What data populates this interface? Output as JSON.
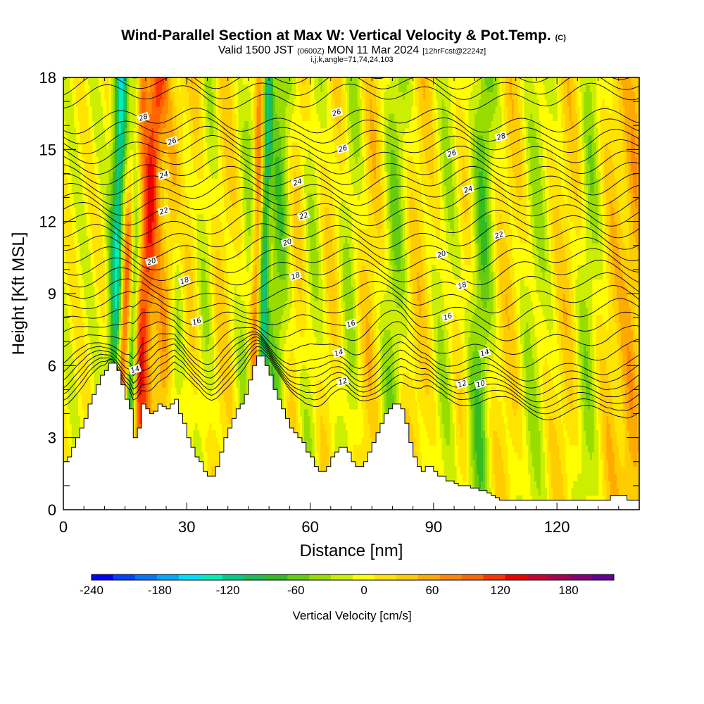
{
  "title": {
    "main": "Wind-Parallel Section at Max W: Vertical Velocity & Pot.Temp.",
    "mark": "(C)",
    "valid_prefix": "Valid 1500 JST",
    "valid_utc": "(0600Z)",
    "valid_date": "MON 11 Mar 2024",
    "forecast": "[12hrFcst@2224z]",
    "indices": "i,j,k,angle=71,74,24,103"
  },
  "chart_data": {
    "type": "heatmap",
    "xlabel": "Distance [nm]",
    "ylabel": "Height [Kft MSL]",
    "xlim": [
      0,
      140
    ],
    "ylim": [
      0,
      18
    ],
    "x_ticks": [
      0,
      30,
      60,
      90,
      120
    ],
    "y_ticks": [
      0,
      3,
      6,
      9,
      12,
      15,
      18
    ],
    "colorbar": {
      "title": "Vertical Velocity [cm/s]",
      "range": [
        -240,
        220
      ],
      "tick_values": [
        -240,
        -180,
        -120,
        -60,
        0,
        60,
        120,
        180
      ],
      "tick_labels": [
        "-240",
        "-180",
        "-120",
        "-60",
        "0",
        "60",
        "120",
        "180"
      ],
      "colors": [
        "#0000ff",
        "#0044ff",
        "#0077ff",
        "#00aaff",
        "#00ddff",
        "#00eebb",
        "#00cc88",
        "#22bb55",
        "#33bb22",
        "#66cc11",
        "#99dd00",
        "#ccee00",
        "#ffff00",
        "#ffe400",
        "#ffcc00",
        "#ffaa00",
        "#ff8800",
        "#ff6600",
        "#ff3300",
        "#ee0000",
        "#cc0033",
        "#aa0055",
        "#880077",
        "#660099"
      ]
    },
    "terrain": {
      "x": [
        0,
        1,
        2,
        3,
        4,
        5,
        6,
        7,
        8,
        9,
        10,
        11,
        12,
        13,
        14,
        15,
        16,
        17,
        18,
        19,
        20,
        21,
        22,
        23,
        24,
        25,
        26,
        27,
        28,
        29,
        30,
        31,
        32,
        33,
        34,
        35,
        36,
        37,
        38,
        39,
        40,
        41,
        42,
        43,
        44,
        45,
        46,
        47,
        48,
        49,
        50,
        51,
        52,
        53,
        54,
        55,
        56,
        57,
        58,
        59,
        60,
        61,
        62,
        63,
        64,
        65,
        66,
        67,
        68,
        69,
        70,
        71,
        72,
        73,
        74,
        75,
        76,
        77,
        78,
        79,
        80,
        81,
        82,
        83,
        84,
        85,
        86,
        87,
        88,
        89,
        90,
        91,
        92,
        93,
        94,
        95,
        96,
        97,
        98,
        99,
        100,
        101,
        102,
        103,
        104,
        105,
        106,
        107,
        108,
        109,
        110,
        111,
        112,
        113,
        114,
        115,
        116,
        117,
        118,
        119,
        120,
        121,
        122,
        123,
        124,
        125,
        126,
        127,
        128,
        129,
        130,
        131,
        132,
        133,
        134,
        135,
        136,
        137,
        138,
        139,
        140
      ],
      "h": [
        2.0,
        2.2,
        2.6,
        3.0,
        3.4,
        3.8,
        4.4,
        4.8,
        5.2,
        5.6,
        5.8,
        6.1,
        6.1,
        5.8,
        5.2,
        4.6,
        4.2,
        3.0,
        3.4,
        4.4,
        4.2,
        4.0,
        4.1,
        4.4,
        4.3,
        4.2,
        4.4,
        4.6,
        4.0,
        3.6,
        3.0,
        2.6,
        2.2,
        2.0,
        1.6,
        1.4,
        1.4,
        1.8,
        2.4,
        3.0,
        3.4,
        3.8,
        4.2,
        4.4,
        4.8,
        5.4,
        6.0,
        6.4,
        6.4,
        6.0,
        5.6,
        5.0,
        4.6,
        4.2,
        3.8,
        3.4,
        3.2,
        3.0,
        2.8,
        2.4,
        2.2,
        1.8,
        1.6,
        1.6,
        1.8,
        2.2,
        2.4,
        2.6,
        2.6,
        2.4,
        2.0,
        1.8,
        1.8,
        2.0,
        2.4,
        2.8,
        3.2,
        3.6,
        4.0,
        4.2,
        4.4,
        4.4,
        4.2,
        3.6,
        2.8,
        2.2,
        1.8,
        1.6,
        1.8,
        1.8,
        1.6,
        1.4,
        1.4,
        1.2,
        1.2,
        1.1,
        1.0,
        1.0,
        1.0,
        0.9,
        0.9,
        0.8,
        0.8,
        0.7,
        0.6,
        0.5,
        0.4,
        0.4,
        0.4,
        0.4,
        0.4,
        0.4,
        0.4,
        0.4,
        0.4,
        0.4,
        0.4,
        0.4,
        0.4,
        0.4,
        0.4,
        0.4,
        0.4,
        0.4,
        0.4,
        0.4,
        0.4,
        0.4,
        0.4,
        0.4,
        0.4,
        0.4,
        0.4,
        0.6,
        0.6,
        0.6,
        0.6,
        0.4,
        0.4,
        0.4,
        0.4
      ]
    },
    "updrafts": [
      {
        "x": 12.5,
        "width": 1.2,
        "w": -130
      },
      {
        "x": 14.5,
        "width": 1.3,
        "w": 150
      },
      {
        "x": 16.5,
        "width": 1.0,
        "w": -150
      },
      {
        "x": 18.5,
        "width": 1.4,
        "w": 110
      },
      {
        "x": 21.0,
        "width": 1.5,
        "w": 40
      },
      {
        "x": 24.5,
        "width": 1.5,
        "w": 60
      },
      {
        "x": 27.0,
        "width": 1.6,
        "w": -40
      },
      {
        "x": 30.5,
        "width": 2.0,
        "w": 30
      },
      {
        "x": 34.0,
        "width": 2.0,
        "w": -30
      },
      {
        "x": 38.0,
        "width": 2.2,
        "w": 30
      },
      {
        "x": 44.5,
        "width": 1.5,
        "w": -30
      },
      {
        "x": 46.5,
        "width": 0.9,
        "w": 90
      },
      {
        "x": 48.2,
        "width": 0.8,
        "w": -100
      },
      {
        "x": 52.0,
        "width": 2.2,
        "w": -60
      },
      {
        "x": 56.0,
        "width": 2.0,
        "w": 40
      },
      {
        "x": 60.0,
        "width": 2.0,
        "w": -30
      },
      {
        "x": 65.0,
        "width": 2.5,
        "w": 30
      },
      {
        "x": 69.0,
        "width": 2.0,
        "w": -40
      },
      {
        "x": 74.0,
        "width": 2.5,
        "w": 35
      },
      {
        "x": 80.0,
        "width": 2.0,
        "w": -50
      },
      {
        "x": 86.0,
        "width": 3.0,
        "w": 30
      },
      {
        "x": 93.0,
        "width": 2.5,
        "w": -30
      },
      {
        "x": 97.0,
        "width": 2.5,
        "w": 30
      },
      {
        "x": 101.0,
        "width": 2.0,
        "w": -70
      },
      {
        "x": 108.0,
        "width": 3.0,
        "w": 30
      },
      {
        "x": 114.0,
        "width": 2.5,
        "w": -30
      },
      {
        "x": 122.0,
        "width": 3.0,
        "w": 30
      },
      {
        "x": 127.0,
        "width": 1.8,
        "w": -40
      },
      {
        "x": 133.0,
        "width": 2.0,
        "w": 30
      },
      {
        "x": 138.0,
        "width": 2.0,
        "w": 50
      }
    ],
    "theta_contours": [
      {
        "value": 10,
        "base": 4.9
      },
      {
        "value": 12,
        "base": 5.6
      },
      {
        "value": 14,
        "base": 6.4
      },
      {
        "value": 16,
        "base": 7.9
      },
      {
        "value": 18,
        "base": 9.4
      },
      {
        "value": 20,
        "base": 10.9
      },
      {
        "value": 22,
        "base": 12.4
      },
      {
        "value": 24,
        "base": 13.7
      },
      {
        "value": 26,
        "base": 15.0
      },
      {
        "value": 28,
        "base": 16.2
      }
    ],
    "contour_labels": [
      {
        "text": "28",
        "x": 19.5,
        "y": 16.3
      },
      {
        "text": "26",
        "x": 26.5,
        "y": 15.3
      },
      {
        "text": "24",
        "x": 24.5,
        "y": 13.9
      },
      {
        "text": "22",
        "x": 24.5,
        "y": 12.4
      },
      {
        "text": "20",
        "x": 21.5,
        "y": 10.3
      },
      {
        "text": "18",
        "x": 29.5,
        "y": 9.5
      },
      {
        "text": "16",
        "x": 32.5,
        "y": 7.8
      },
      {
        "text": "14",
        "x": 17.5,
        "y": 5.8
      },
      {
        "text": "26",
        "x": 66.5,
        "y": 16.5
      },
      {
        "text": "26",
        "x": 68.0,
        "y": 15.0
      },
      {
        "text": "24",
        "x": 57.0,
        "y": 13.6
      },
      {
        "text": "22",
        "x": 58.5,
        "y": 12.2
      },
      {
        "text": "20",
        "x": 54.5,
        "y": 11.1
      },
      {
        "text": "18",
        "x": 56.5,
        "y": 9.7
      },
      {
        "text": "16",
        "x": 70.0,
        "y": 7.7
      },
      {
        "text": "14",
        "x": 67.0,
        "y": 6.5
      },
      {
        "text": "12",
        "x": 68.0,
        "y": 5.3
      },
      {
        "text": "26",
        "x": 94.5,
        "y": 14.8
      },
      {
        "text": "24",
        "x": 98.5,
        "y": 13.3
      },
      {
        "text": "22",
        "x": 106.0,
        "y": 11.4
      },
      {
        "text": "20",
        "x": 92.0,
        "y": 10.6
      },
      {
        "text": "18",
        "x": 97.0,
        "y": 9.3
      },
      {
        "text": "16",
        "x": 93.5,
        "y": 8.0
      },
      {
        "text": "14",
        "x": 102.5,
        "y": 6.5
      },
      {
        "text": "28",
        "x": 106.5,
        "y": 15.5
      },
      {
        "text": "12",
        "x": 97.0,
        "y": 5.2
      },
      {
        "text": "10",
        "x": 101.5,
        "y": 5.2
      }
    ]
  }
}
